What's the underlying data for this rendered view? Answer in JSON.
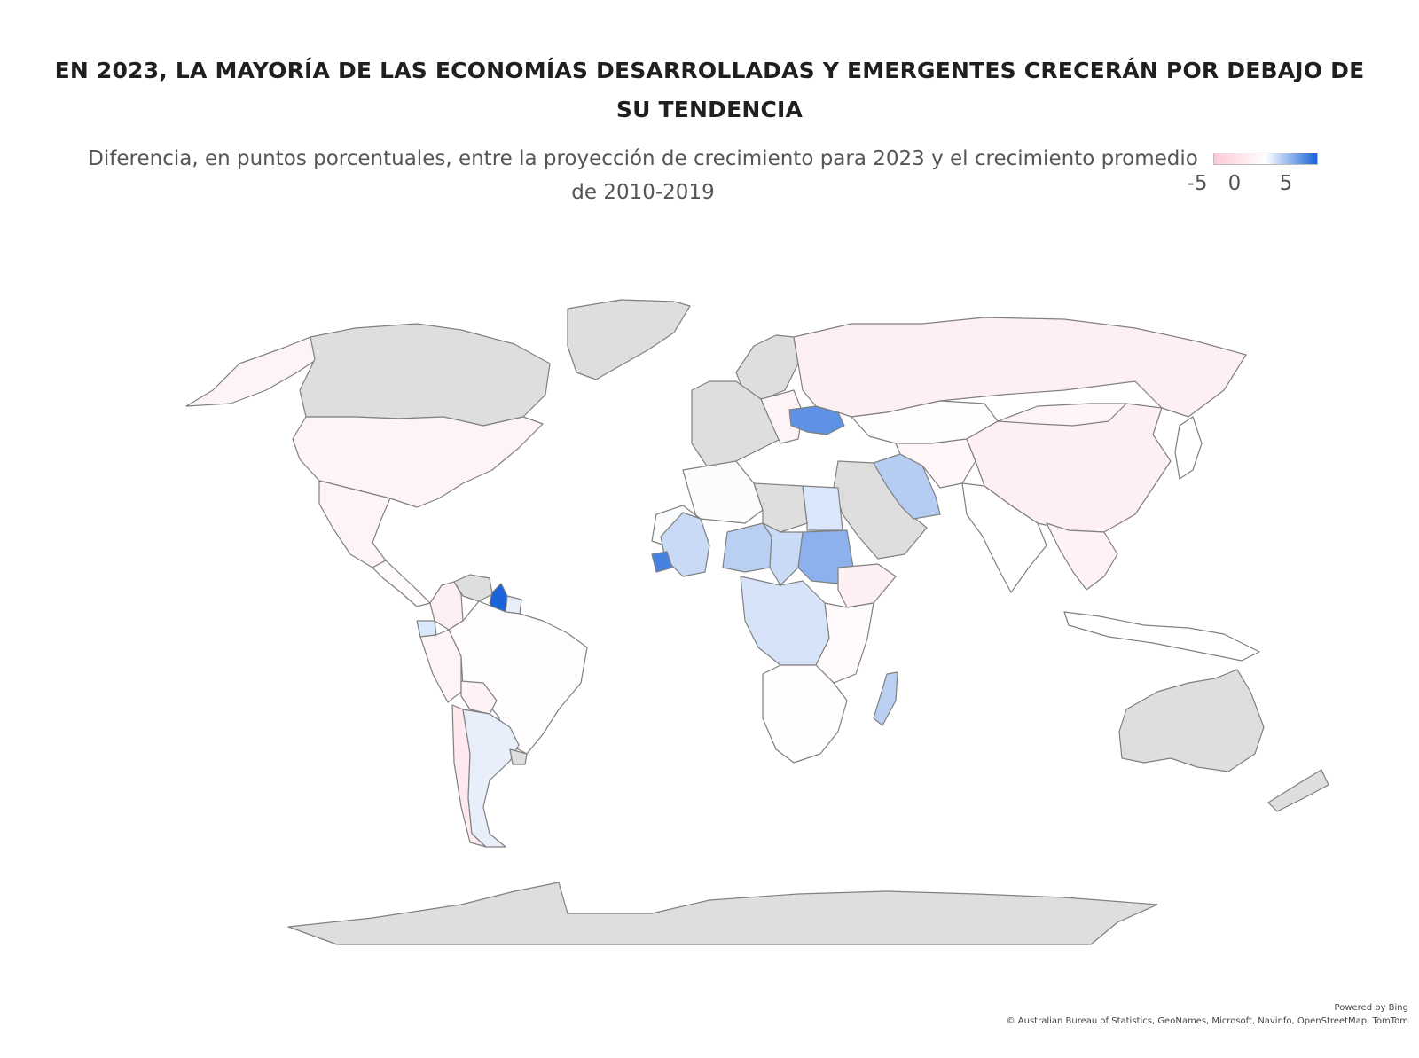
{
  "title": "EN 2023, LA MAYORÍA DE LAS ECONOMÍAS DESARROLLADAS Y EMERGENTES CRECERÁN POR DEBAJO DE SU TENDENCIA",
  "subtitle": "Diferencia, en puntos porcentuales, entre la proyección de crecimiento para 2023 y el crecimiento promedio de 2010-2019",
  "legend": {
    "min_label": "-5",
    "mid_label": "0",
    "max_label": "5",
    "colors": {
      "negative": "#fcc9d6",
      "zero": "#ffffff",
      "positive": "#1a63d8",
      "no_data": "#dedede"
    }
  },
  "attribution": {
    "powered_by": "Powered by Bing",
    "sources": "© Australian Bureau of Statistics, GeoNames, Microsoft, Navinfo, OpenStreetMap, TomTom"
  },
  "regions": [
    {
      "id": "alaska",
      "value": -1.0
    },
    {
      "id": "canada",
      "value": null
    },
    {
      "id": "greenland",
      "value": null
    },
    {
      "id": "usa",
      "value": -1.0
    },
    {
      "id": "mexico",
      "value": -1.0
    },
    {
      "id": "central-america",
      "value": -0.5
    },
    {
      "id": "colombia",
      "value": -1.5
    },
    {
      "id": "venezuela",
      "value": null
    },
    {
      "id": "guyana",
      "value": 5.0
    },
    {
      "id": "suriname",
      "value": 0.5
    },
    {
      "id": "ecuador",
      "value": 0.8
    },
    {
      "id": "peru",
      "value": -1.0
    },
    {
      "id": "brazil",
      "value": -0.3
    },
    {
      "id": "bolivia",
      "value": -1.2
    },
    {
      "id": "chile",
      "value": -2.0
    },
    {
      "id": "argentina",
      "value": 0.5
    },
    {
      "id": "uruguay",
      "value": null
    },
    {
      "id": "iceland-scandinavia",
      "value": null
    },
    {
      "id": "western-europe",
      "value": null
    },
    {
      "id": "eastern-europe",
      "value": -1.0
    },
    {
      "id": "ukraine",
      "value": 3.5
    },
    {
      "id": "russia",
      "value": -1.5
    },
    {
      "id": "kazakhstan",
      "value": -0.3
    },
    {
      "id": "middle-east",
      "value": null
    },
    {
      "id": "iran",
      "value": 1.6
    },
    {
      "id": "central-asia",
      "value": -0.8
    },
    {
      "id": "china",
      "value": -1.5
    },
    {
      "id": "mongolia",
      "value": -1.0
    },
    {
      "id": "india",
      "value": 0.0
    },
    {
      "id": "southeast-asia",
      "value": -1.2
    },
    {
      "id": "north-africa-west",
      "value": 0.1
    },
    {
      "id": "egypt",
      "value": 0.8
    },
    {
      "id": "sudan",
      "value": 2.5
    },
    {
      "id": "ethiopia",
      "value": -1.5
    },
    {
      "id": "west-sahel",
      "value": 1.2
    },
    {
      "id": "senegal",
      "value": 4.0
    },
    {
      "id": "niger",
      "value": 1.5
    },
    {
      "id": "chad",
      "value": 1.2
    },
    {
      "id": "libya",
      "value": null
    },
    {
      "id": "central-africa",
      "value": 0.9
    },
    {
      "id": "east-africa",
      "value": -0.5
    },
    {
      "id": "southern-africa",
      "value": -0.3
    },
    {
      "id": "madagascar",
      "value": 1.5
    },
    {
      "id": "australia",
      "value": null
    },
    {
      "id": "new-zealand",
      "value": null
    },
    {
      "id": "antarctica",
      "value": null
    },
    {
      "id": "indonesia",
      "value": 0.0
    },
    {
      "id": "japan",
      "value": 0.0
    }
  ]
}
